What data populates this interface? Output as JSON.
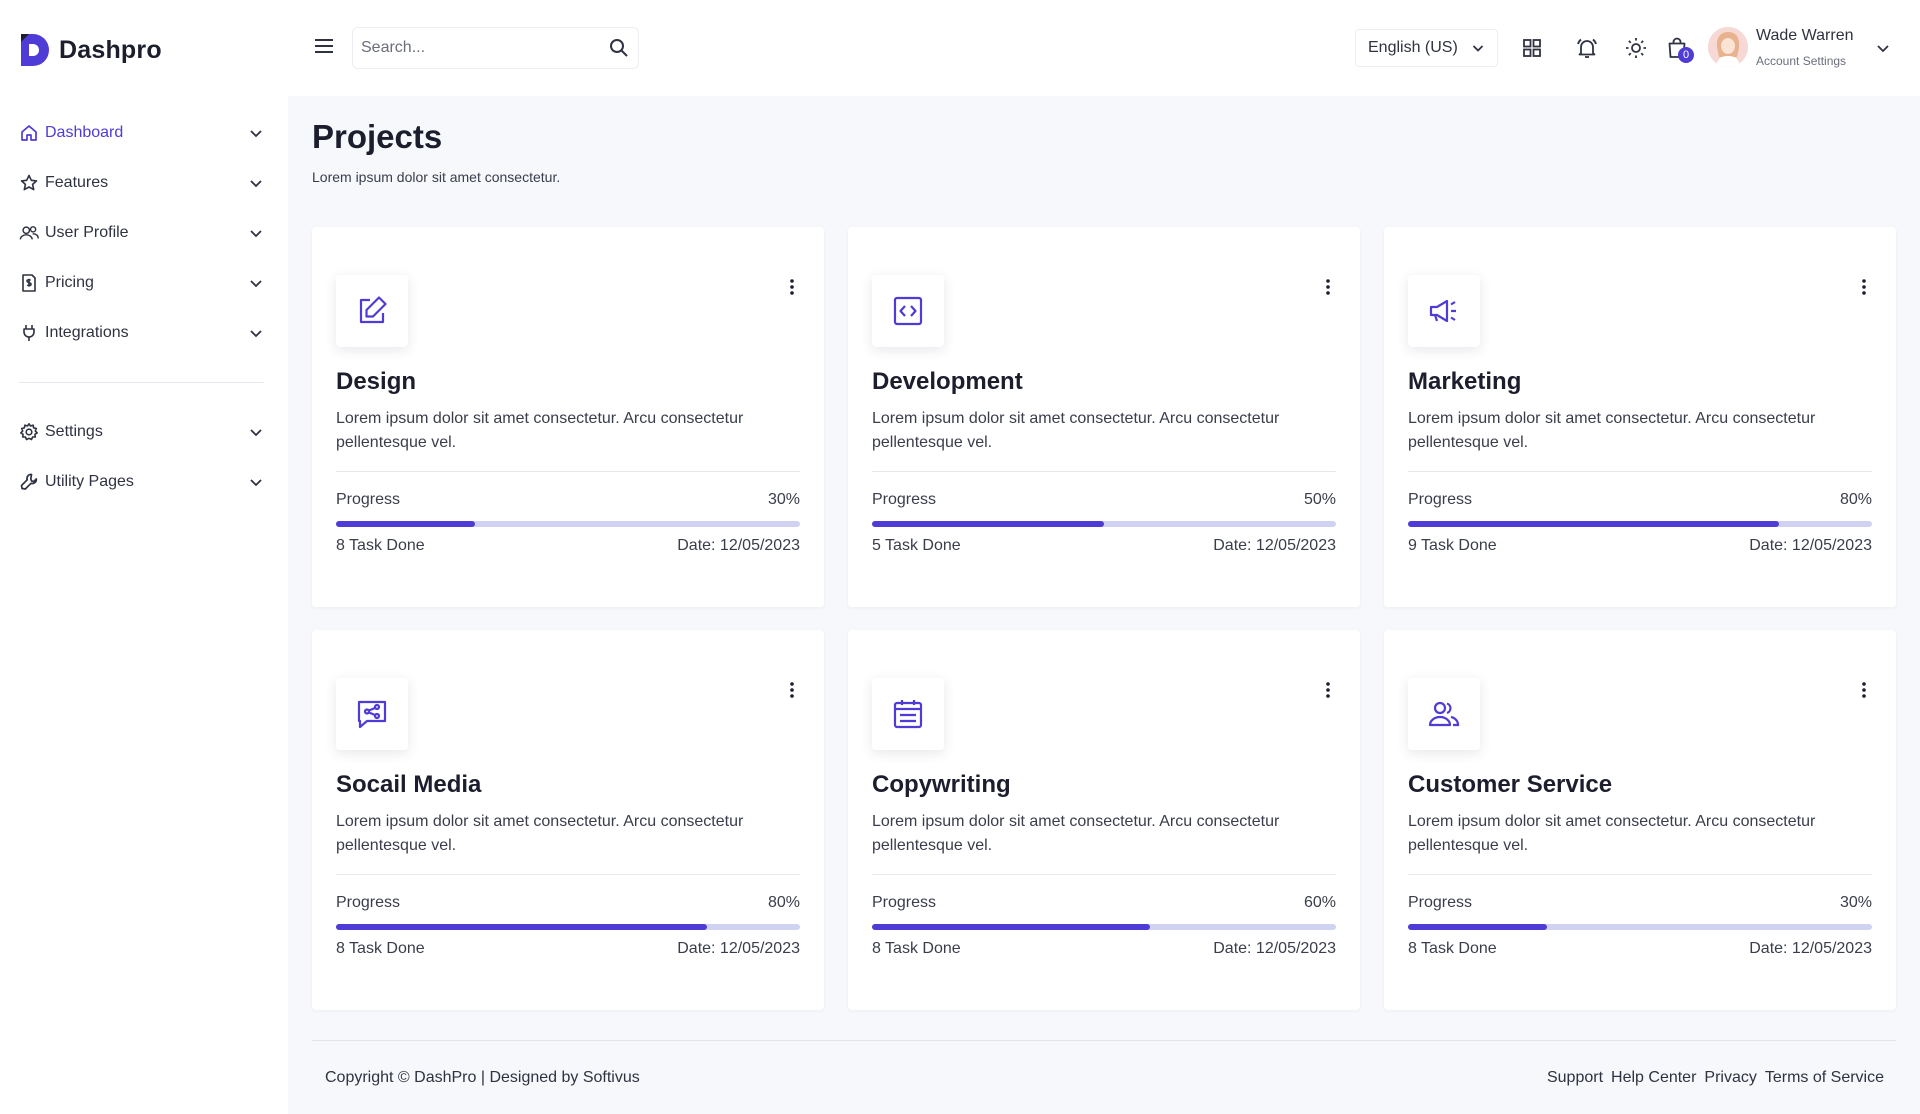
{
  "brand": {
    "name": "Dashpro",
    "accent": "#4f3bd6"
  },
  "sidebar": {
    "items": [
      {
        "label": "Dashboard",
        "icon": "home-icon",
        "active": true
      },
      {
        "label": "Features",
        "icon": "star-icon"
      },
      {
        "label": "User Profile",
        "icon": "users-icon"
      },
      {
        "label": "Pricing",
        "icon": "invoice-icon"
      },
      {
        "label": "Integrations",
        "icon": "plug-icon"
      }
    ],
    "secondary": [
      {
        "label": "Settings",
        "icon": "gear-icon"
      },
      {
        "label": "Utility Pages",
        "icon": "wrench-icon"
      }
    ]
  },
  "header": {
    "search_placeholder": "Search...",
    "language": "English (US)",
    "cart_count": "0",
    "user_name": "Wade Warren",
    "user_sub": "Account Settings"
  },
  "page": {
    "title": "Projects",
    "subtitle": "Lorem ipsum dolor sit amet consectetur."
  },
  "projects": [
    {
      "title": "Design",
      "icon": "edit-icon",
      "desc": "Lorem ipsum dolor sit amet consectetur. Arcu consectetur pellentesque vel.",
      "progress_label": "Progress",
      "progress": 0.3,
      "progress_text": "30%",
      "tasks": "8 Task Done",
      "date": "Date: 12/05/2023"
    },
    {
      "title": "Development",
      "icon": "code-icon",
      "desc": "Lorem ipsum dolor sit amet consectetur. Arcu consectetur pellentesque vel.",
      "progress_label": "Progress",
      "progress": 0.5,
      "progress_text": "50%",
      "tasks": "5 Task Done",
      "date": "Date: 12/05/2023"
    },
    {
      "title": "Marketing",
      "icon": "megaphone-icon",
      "desc": "Lorem ipsum dolor sit amet consectetur. Arcu consectetur pellentesque vel.",
      "progress_label": "Progress",
      "progress": 0.8,
      "progress_text": "80%",
      "tasks": "9 Task Done",
      "date": "Date: 12/05/2023"
    },
    {
      "title": "Socail Media",
      "icon": "share-message-icon",
      "desc": "Lorem ipsum dolor sit amet consectetur. Arcu consectetur pellentesque vel.",
      "progress_label": "Progress",
      "progress": 0.8,
      "progress_text": "80%",
      "tasks": "8 Task Done",
      "date": "Date: 12/05/2023"
    },
    {
      "title": "Copywriting",
      "icon": "calendar-icon",
      "desc": "Lorem ipsum dolor sit amet consectetur. Arcu consectetur pellentesque vel.",
      "progress_label": "Progress",
      "progress": 0.6,
      "progress_text": "60%",
      "tasks": "8 Task Done",
      "date": "Date: 12/05/2023"
    },
    {
      "title": "Customer Service",
      "icon": "users-icon",
      "desc": "Lorem ipsum dolor sit amet consectetur. Arcu consectetur pellentesque vel.",
      "progress_label": "Progress",
      "progress": 0.3,
      "progress_text": "30%",
      "tasks": "8 Task Done",
      "date": "Date: 12/05/2023"
    }
  ],
  "footer": {
    "copyright": "Copyright © DashPro | Designed by Softivus",
    "links": [
      "Support",
      "Help Center",
      "Privacy",
      "Terms of Service"
    ]
  }
}
